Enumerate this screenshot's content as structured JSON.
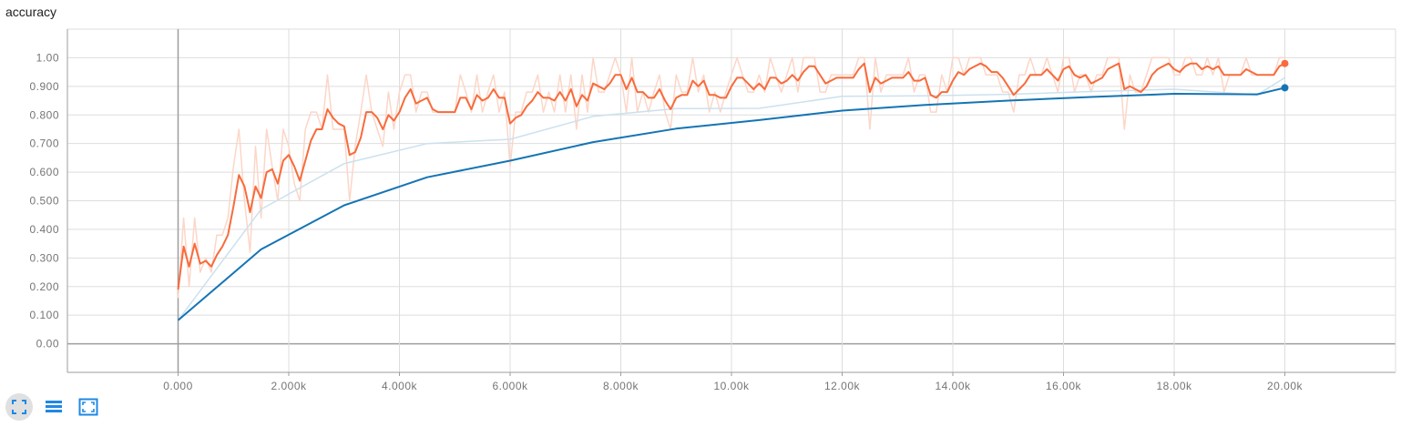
{
  "title": "accuracy",
  "toolbar": {
    "icons": [
      "fit-domain-icon",
      "data-table-icon",
      "expand-chart-icon"
    ]
  },
  "colors": {
    "orange": "#f86b3b",
    "orange_light": "#fcd6c8",
    "blue": "#1474b4",
    "blue_light": "#cbe1ef",
    "grid": "#dddddd",
    "axis": "#9e9e9e",
    "zero_line": "#9e9e9e",
    "toolbar_icon": "#1e88e5"
  },
  "chart_data": {
    "type": "line",
    "title": "accuracy",
    "xlabel": "",
    "ylabel": "",
    "xlim": [
      -2000,
      22000
    ],
    "ylim": [
      -0.1,
      1.1
    ],
    "x_ticks": [
      0,
      2000,
      4000,
      6000,
      8000,
      10000,
      12000,
      14000,
      16000,
      18000,
      20000
    ],
    "x_tick_labels": [
      "0.000",
      "2.000k",
      "4.000k",
      "6.000k",
      "8.000k",
      "10.00k",
      "12.00k",
      "14.00k",
      "16.00k",
      "18.00k",
      "20.00k"
    ],
    "y_ticks": [
      0,
      0.1,
      0.2,
      0.3,
      0.4,
      0.5,
      0.6,
      0.7,
      0.8,
      0.9,
      1.0
    ],
    "y_tick_labels": [
      "0.00",
      "0.100",
      "0.200",
      "0.300",
      "0.400",
      "0.500",
      "0.600",
      "0.700",
      "0.800",
      "0.900",
      "1.00"
    ],
    "grid": true,
    "legend": "none",
    "series": [
      {
        "color": "orange",
        "smoothed": {
          "x": [
            0,
            100,
            200,
            300,
            400,
            500,
            600,
            700,
            800,
            900,
            1000,
            1100,
            1200,
            1300,
            1400,
            1500,
            1600,
            1700,
            1800,
            1900,
            2000,
            2100,
            2200,
            2300,
            2400,
            2500,
            2600,
            2700,
            2800,
            2900,
            3000,
            3100,
            3200,
            3300,
            3400,
            3500,
            3600,
            3700,
            3800,
            3900,
            4000,
            4100,
            4200,
            4300,
            4400,
            4500,
            4600,
            4700,
            4800,
            4900,
            5000,
            5100,
            5200,
            5300,
            5400,
            5500,
            5600,
            5700,
            5800,
            5900,
            6000,
            6100,
            6200,
            6300,
            6400,
            6500,
            6600,
            6700,
            6800,
            6900,
            7000,
            7100,
            7200,
            7300,
            7400,
            7500,
            7600,
            7700,
            7800,
            7900,
            8000,
            8100,
            8200,
            8300,
            8400,
            8500,
            8600,
            8700,
            8800,
            8900,
            9000,
            9100,
            9200,
            9300,
            9400,
            9500,
            9600,
            9700,
            9800,
            9900,
            10000,
            10100,
            10200,
            10300,
            10400,
            10500,
            10600,
            10700,
            10800,
            10900,
            11000,
            11100,
            11200,
            11300,
            11400,
            11500,
            11600,
            11700,
            11800,
            11900,
            12000,
            12100,
            12200,
            12300,
            12400,
            12500,
            12600,
            12700,
            12800,
            12900,
            13000,
            13100,
            13200,
            13300,
            13400,
            13500,
            13600,
            13700,
            13800,
            13900,
            14000,
            14100,
            14200,
            14300,
            14400,
            14500,
            14600,
            14700,
            14800,
            14900,
            15000,
            15100,
            15200,
            15300,
            15400,
            15500,
            15600,
            15700,
            15800,
            15900,
            16000,
            16100,
            16200,
            16300,
            16400,
            16500,
            16600,
            16700,
            16800,
            16900,
            17000,
            17100,
            17200,
            17300,
            17400,
            17500,
            17600,
            17700,
            17800,
            17900,
            18000,
            18100,
            18200,
            18300,
            18400,
            18500,
            18600,
            18700,
            18800,
            18900,
            19000,
            19100,
            19200,
            19300,
            19400,
            19500,
            19600,
            19700,
            19800,
            19900,
            20000
          ],
          "y": [
            0.19,
            0.34,
            0.27,
            0.35,
            0.28,
            0.29,
            0.27,
            0.31,
            0.34,
            0.38,
            0.48,
            0.59,
            0.55,
            0.46,
            0.55,
            0.51,
            0.6,
            0.61,
            0.56,
            0.64,
            0.66,
            0.62,
            0.57,
            0.64,
            0.71,
            0.75,
            0.75,
            0.82,
            0.79,
            0.77,
            0.76,
            0.66,
            0.67,
            0.72,
            0.81,
            0.81,
            0.79,
            0.75,
            0.8,
            0.78,
            0.81,
            0.86,
            0.89,
            0.84,
            0.85,
            0.86,
            0.82,
            0.81,
            0.81,
            0.81,
            0.81,
            0.86,
            0.86,
            0.82,
            0.87,
            0.85,
            0.86,
            0.89,
            0.86,
            0.86,
            0.77,
            0.79,
            0.8,
            0.83,
            0.85,
            0.88,
            0.86,
            0.86,
            0.85,
            0.88,
            0.85,
            0.89,
            0.83,
            0.87,
            0.85,
            0.91,
            0.9,
            0.89,
            0.91,
            0.94,
            0.94,
            0.89,
            0.93,
            0.88,
            0.88,
            0.86,
            0.86,
            0.89,
            0.85,
            0.82,
            0.86,
            0.87,
            0.87,
            0.92,
            0.9,
            0.92,
            0.87,
            0.87,
            0.86,
            0.86,
            0.9,
            0.93,
            0.93,
            0.91,
            0.89,
            0.91,
            0.89,
            0.93,
            0.93,
            0.91,
            0.92,
            0.94,
            0.92,
            0.95,
            0.97,
            0.97,
            0.94,
            0.91,
            0.92,
            0.93,
            0.93,
            0.93,
            0.93,
            0.96,
            0.98,
            0.88,
            0.93,
            0.91,
            0.92,
            0.93,
            0.93,
            0.93,
            0.95,
            0.92,
            0.92,
            0.93,
            0.87,
            0.86,
            0.88,
            0.88,
            0.92,
            0.95,
            0.94,
            0.96,
            0.97,
            0.98,
            0.97,
            0.95,
            0.95,
            0.93,
            0.9,
            0.87,
            0.89,
            0.91,
            0.94,
            0.94,
            0.94,
            0.96,
            0.94,
            0.92,
            0.96,
            0.97,
            0.94,
            0.93,
            0.94,
            0.91,
            0.92,
            0.93,
            0.96,
            0.97,
            0.98,
            0.89,
            0.9,
            0.89,
            0.88,
            0.9,
            0.94,
            0.96,
            0.97,
            0.98,
            0.96,
            0.95,
            0.97,
            0.98,
            0.98,
            0.96,
            0.97,
            0.96,
            0.97,
            0.94,
            0.94,
            0.94,
            0.94,
            0.96,
            0.95,
            0.94,
            0.94,
            0.94,
            0.94,
            0.97,
            0.98
          ]
        },
        "raw": {
          "x": [
            0,
            100,
            200,
            300,
            400,
            500,
            600,
            700,
            800,
            900,
            1000,
            1100,
            1200,
            1300,
            1400,
            1500,
            1600,
            1700,
            1800,
            1900,
            2000,
            2100,
            2200,
            2300,
            2400,
            2500,
            2600,
            2700,
            2800,
            2900,
            3000,
            3100,
            3200,
            3300,
            3400,
            3500,
            3600,
            3700,
            3800,
            3900,
            4000,
            4100,
            4200,
            4300,
            4400,
            4500,
            4600,
            4700,
            4800,
            4900,
            5000,
            5100,
            5200,
            5300,
            5400,
            5500,
            5600,
            5700,
            5800,
            5900,
            6000,
            6100,
            6200,
            6300,
            6400,
            6500,
            6600,
            6700,
            6800,
            6900,
            7000,
            7100,
            7200,
            7300,
            7400,
            7500,
            7600,
            7700,
            7800,
            7900,
            8000,
            8100,
            8200,
            8300,
            8400,
            8500,
            8600,
            8700,
            8800,
            8900,
            9000,
            9100,
            9200,
            9300,
            9400,
            9500,
            9600,
            9700,
            9800,
            9900,
            10000,
            10100,
            10200,
            10300,
            10400,
            10500,
            10600,
            10700,
            10800,
            10900,
            11000,
            11100,
            11200,
            11300,
            11400,
            11500,
            11600,
            11700,
            11800,
            11900,
            12000,
            12100,
            12200,
            12300,
            12400,
            12500,
            12600,
            12700,
            12800,
            12900,
            13000,
            13100,
            13200,
            13300,
            13400,
            13500,
            13600,
            13700,
            13800,
            13900,
            14000,
            14100,
            14200,
            14300,
            14400,
            14500,
            14600,
            14700,
            14800,
            14900,
            15000,
            15100,
            15200,
            15300,
            15400,
            15500,
            15600,
            15700,
            15800,
            15900,
            16000,
            16100,
            16200,
            16300,
            16400,
            16500,
            16600,
            16700,
            16800,
            16900,
            17000,
            17100,
            17200,
            17300,
            17400,
            17500,
            17600,
            17700,
            17800,
            17900,
            18000,
            18100,
            18200,
            18300,
            18400,
            18500,
            18600,
            18700,
            18800,
            18900,
            19000,
            19100,
            19200,
            19300,
            19400,
            19500,
            19600,
            19700,
            19800,
            19900,
            20000
          ],
          "y": [
            0.16,
            0.44,
            0.2,
            0.44,
            0.25,
            0.3,
            0.25,
            0.38,
            0.38,
            0.44,
            0.62,
            0.75,
            0.5,
            0.32,
            0.69,
            0.44,
            0.75,
            0.62,
            0.5,
            0.75,
            0.69,
            0.56,
            0.5,
            0.75,
            0.81,
            0.81,
            0.75,
            0.94,
            0.75,
            0.75,
            0.75,
            0.5,
            0.69,
            0.81,
            0.94,
            0.81,
            0.75,
            0.69,
            0.88,
            0.75,
            0.88,
            0.94,
            0.94,
            0.81,
            0.88,
            0.88,
            0.81,
            0.81,
            0.81,
            0.81,
            0.81,
            0.94,
            0.88,
            0.81,
            0.94,
            0.81,
            0.88,
            0.94,
            0.81,
            0.88,
            0.62,
            0.81,
            0.81,
            0.88,
            0.88,
            0.94,
            0.81,
            0.88,
            0.81,
            0.94,
            0.81,
            0.94,
            0.75,
            0.94,
            0.81,
            1.0,
            0.88,
            0.88,
            0.94,
            1.0,
            0.94,
            0.81,
            1.0,
            0.81,
            0.88,
            0.81,
            0.88,
            0.94,
            0.81,
            0.75,
            0.94,
            0.88,
            0.88,
            1.0,
            0.88,
            0.94,
            0.81,
            0.88,
            0.81,
            0.88,
            0.94,
            1.0,
            0.94,
            0.88,
            0.88,
            0.94,
            0.88,
            1.0,
            0.94,
            0.88,
            0.94,
            1.0,
            0.88,
            1.0,
            1.0,
            1.0,
            0.88,
            0.88,
            0.94,
            0.94,
            0.94,
            0.94,
            0.94,
            1.0,
            1.0,
            0.75,
            1.0,
            0.88,
            0.94,
            0.94,
            0.94,
            0.94,
            1.0,
            0.88,
            0.94,
            0.94,
            0.81,
            0.81,
            0.94,
            0.88,
            1.0,
            1.0,
            0.94,
            1.0,
            1.0,
            1.0,
            0.94,
            0.94,
            0.94,
            0.88,
            0.88,
            0.81,
            0.94,
            0.94,
            1.0,
            0.94,
            0.94,
            1.0,
            0.94,
            0.88,
            1.0,
            1.0,
            0.88,
            0.94,
            0.94,
            0.88,
            0.94,
            0.94,
            1.0,
            1.0,
            1.0,
            0.75,
            0.94,
            0.88,
            0.88,
            0.94,
            1.0,
            1.0,
            1.0,
            1.0,
            0.94,
            0.94,
            1.0,
            1.0,
            0.94,
            0.94,
            1.0,
            0.94,
            1.0,
            0.88,
            0.94,
            0.94,
            0.94,
            1.0,
            0.94,
            0.94,
            0.94,
            0.94,
            0.94,
            1.0,
            1.0
          ]
        }
      },
      {
        "color": "blue",
        "smoothed": {
          "x": [
            0,
            1500,
            3000,
            4500,
            6000,
            7500,
            9000,
            10500,
            12000,
            13500,
            15000,
            16500,
            18000,
            19500,
            20000
          ],
          "y": [
            0.082,
            0.33,
            0.484,
            0.582,
            0.64,
            0.705,
            0.752,
            0.782,
            0.815,
            0.835,
            0.85,
            0.863,
            0.874,
            0.872,
            0.895
          ]
        },
        "raw": {
          "x": [
            0,
            1500,
            3000,
            4500,
            6000,
            7500,
            9000,
            10500,
            12000,
            13500,
            15000,
            16500,
            18000,
            19500,
            20000
          ],
          "y": [
            0.082,
            0.47,
            0.63,
            0.7,
            0.715,
            0.795,
            0.822,
            0.823,
            0.865,
            0.867,
            0.872,
            0.882,
            0.89,
            0.87,
            0.93
          ]
        }
      }
    ]
  }
}
